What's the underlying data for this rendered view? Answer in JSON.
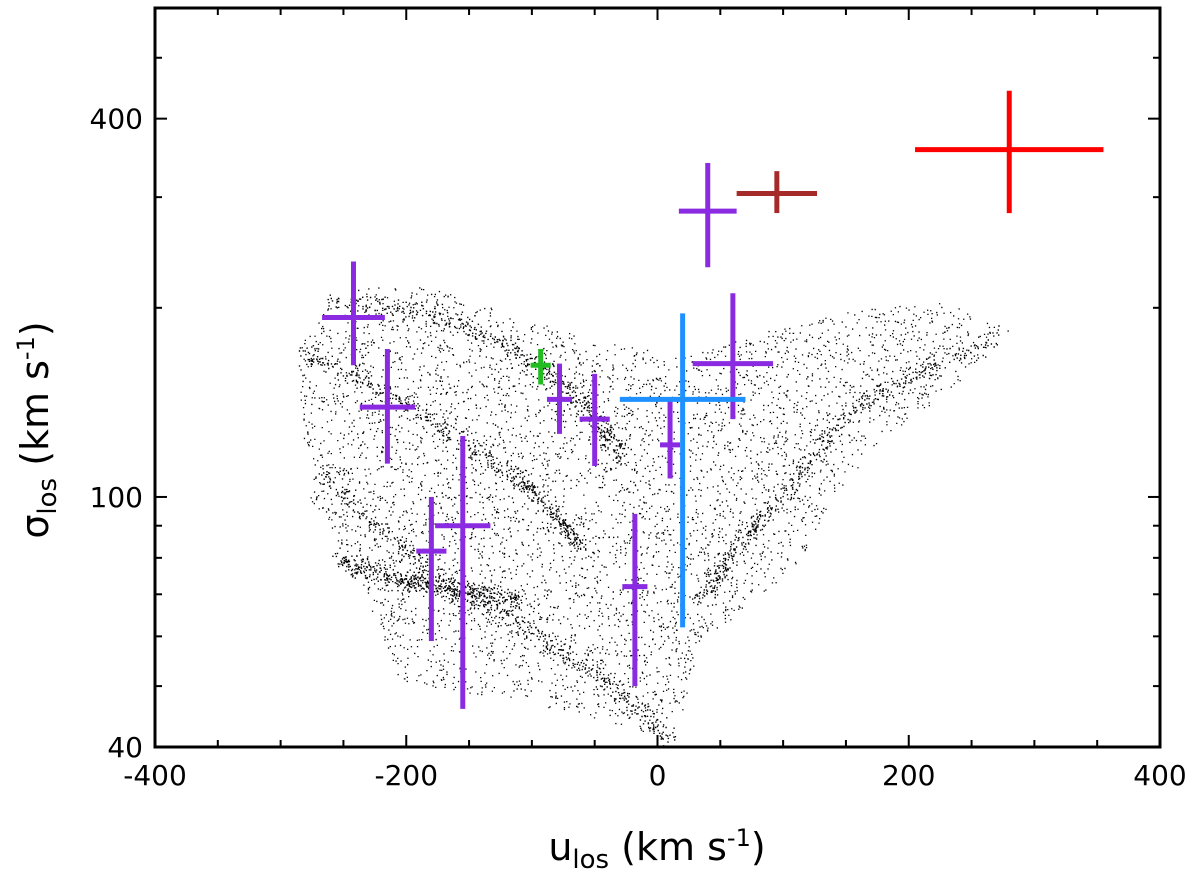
{
  "chart_data": {
    "type": "scatter",
    "xlabel": {
      "main": "u",
      "sub": "los",
      "unit_open": " (km s",
      "unit_sup": "-1",
      "unit_close": ")"
    },
    "ylabel": {
      "main": "σ",
      "sub": "los",
      "unit_open": " (km s",
      "unit_sup": "-1",
      "unit_close": ")"
    },
    "xlim": [
      -400,
      400
    ],
    "ylim": [
      40,
      600
    ],
    "yscale": "log",
    "xticks": [
      -400,
      -200,
      0,
      200,
      400
    ],
    "xtick_labels": [
      "-400",
      "-200",
      "0",
      "200",
      "400"
    ],
    "yticks": [
      40,
      100,
      400
    ],
    "ytick_labels": [
      "40",
      "100",
      "400"
    ],
    "series": [
      {
        "name": "simulation particles",
        "kind": "scatter",
        "color": "#000000",
        "description": "dense cloud of small black dots"
      },
      {
        "name": "purple points",
        "kind": "errorbar",
        "color": "#8a2be2",
        "points": [
          {
            "x": -242,
            "y": 193,
            "xerr": 25,
            "y_lo": 162,
            "y_hi": 237
          },
          {
            "x": -215,
            "y": 139,
            "xerr": 22,
            "y_lo": 113,
            "y_hi": 172
          },
          {
            "x": 40,
            "y": 285,
            "xerr": 23,
            "y_lo": 232,
            "y_hi": 340
          },
          {
            "x": 60,
            "y": 163,
            "xerr": 32,
            "y_lo": 133,
            "y_hi": 211
          },
          {
            "x": -78,
            "y": 143,
            "xerr": 10,
            "y_lo": 126,
            "y_hi": 163
          },
          {
            "x": -50,
            "y": 133,
            "xerr": 12,
            "y_lo": 112,
            "y_hi": 157
          },
          {
            "x": 10,
            "y": 121,
            "xerr": 8,
            "y_lo": 107,
            "y_hi": 142
          },
          {
            "x": -155,
            "y": 90,
            "xerr": 22,
            "y_lo": 46,
            "y_hi": 125
          },
          {
            "x": -180,
            "y": 82,
            "xerr": 12,
            "y_lo": 59,
            "y_hi": 100
          },
          {
            "x": -18,
            "y": 72,
            "xerr": 10,
            "y_lo": 50,
            "y_hi": 94
          }
        ]
      },
      {
        "name": "green point",
        "kind": "errorbar",
        "color": "#22bb22",
        "points": [
          {
            "x": -93,
            "y": 162,
            "xerr": 8,
            "y_lo": 151,
            "y_hi": 172
          }
        ]
      },
      {
        "name": "blue point",
        "kind": "errorbar",
        "color": "#1e90ff",
        "points": [
          {
            "x": 20,
            "y": 143,
            "xerr": 50,
            "y_lo": 62,
            "y_hi": 196
          }
        ]
      },
      {
        "name": "dark red point",
        "kind": "errorbar",
        "color": "#a52a2a",
        "points": [
          {
            "x": 95,
            "y": 304,
            "xerr": 32,
            "y_lo": 283,
            "y_hi": 330
          }
        ]
      },
      {
        "name": "red point",
        "kind": "errorbar",
        "color": "#ff0000",
        "points": [
          {
            "x": 280,
            "y": 357,
            "xerr": 75,
            "y_lo": 283,
            "y_hi": 443
          }
        ]
      }
    ]
  }
}
